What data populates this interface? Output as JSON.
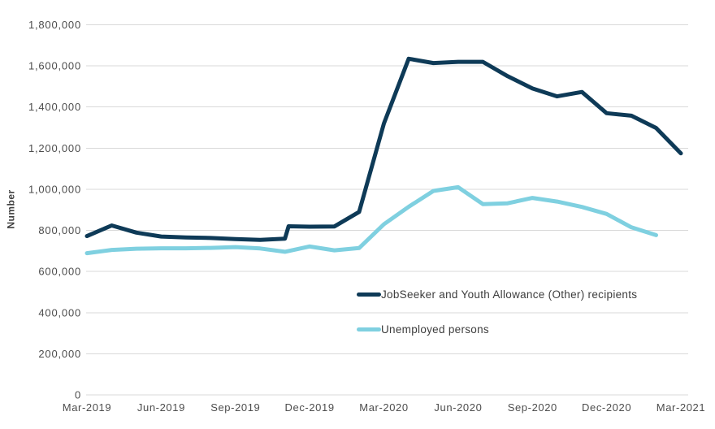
{
  "axes": {
    "y_title": "Number"
  },
  "chart_data": {
    "type": "line",
    "title": "",
    "xlabel": "",
    "ylabel": "Number",
    "ylim": [
      0,
      1800000
    ],
    "y_tick_step": 200000,
    "y_tick_labels": [
      "0",
      "200,000",
      "400,000",
      "600,000",
      "800,000",
      "1,000,000",
      "1,200,000",
      "1,400,000",
      "1,600,000",
      "1,800,000"
    ],
    "x_tick_labels": [
      "Mar-2019",
      "Jun-2019",
      "Sep-2019",
      "Dec-2019",
      "Mar-2020",
      "Jun-2020",
      "Sep-2020",
      "Dec-2020",
      "Mar-2021"
    ],
    "x_tick_indices": [
      0,
      3,
      6,
      9,
      12,
      15,
      18,
      21,
      24
    ],
    "x_unit": "months since Mar-2019",
    "x_range": [
      0,
      24
    ],
    "grid": true,
    "legend_position": "inside-center",
    "series": [
      {
        "name": "JobSeeker and Youth Allowance (Other) recipients",
        "color": "#0e3a57",
        "points": [
          [
            0,
            772000
          ],
          [
            1,
            824000
          ],
          [
            2,
            789000
          ],
          [
            3,
            770000
          ],
          [
            4,
            766000
          ],
          [
            5,
            763000
          ],
          [
            6,
            758000
          ],
          [
            7,
            754000
          ],
          [
            8,
            760000
          ],
          [
            8.15,
            820000
          ],
          [
            9,
            818000
          ],
          [
            10,
            819000
          ],
          [
            11,
            890000
          ],
          [
            12,
            1320000
          ],
          [
            13,
            1635000
          ],
          [
            14,
            1614000
          ],
          [
            15,
            1620000
          ],
          [
            16,
            1620000
          ],
          [
            17,
            1550000
          ],
          [
            18,
            1490000
          ],
          [
            19,
            1452000
          ],
          [
            20,
            1473000
          ],
          [
            21,
            1370000
          ],
          [
            22,
            1358000
          ],
          [
            23,
            1298000
          ],
          [
            24,
            1175000
          ]
        ]
      },
      {
        "name": "Unemployed persons",
        "color": "#7fd0e0",
        "points": [
          [
            0,
            689000
          ],
          [
            1,
            705000
          ],
          [
            2,
            711000
          ],
          [
            3,
            713000
          ],
          [
            4,
            713000
          ],
          [
            5,
            715000
          ],
          [
            6,
            719000
          ],
          [
            7,
            712000
          ],
          [
            8,
            696000
          ],
          [
            9,
            722000
          ],
          [
            10,
            703000
          ],
          [
            11,
            714000
          ],
          [
            12,
            830000
          ],
          [
            13,
            915000
          ],
          [
            14,
            992000
          ],
          [
            15,
            1010000
          ],
          [
            16,
            928000
          ],
          [
            17,
            932000
          ],
          [
            18,
            958000
          ],
          [
            19,
            940000
          ],
          [
            20,
            914000
          ],
          [
            21,
            880000
          ],
          [
            22,
            815000
          ],
          [
            23,
            777000
          ]
        ]
      }
    ]
  },
  "legend": {
    "items": [
      {
        "label": "JobSeeker and Youth Allowance (Other) recipients",
        "color": "#0e3a57"
      },
      {
        "label": "Unemployed persons",
        "color": "#7fd0e0"
      }
    ]
  }
}
